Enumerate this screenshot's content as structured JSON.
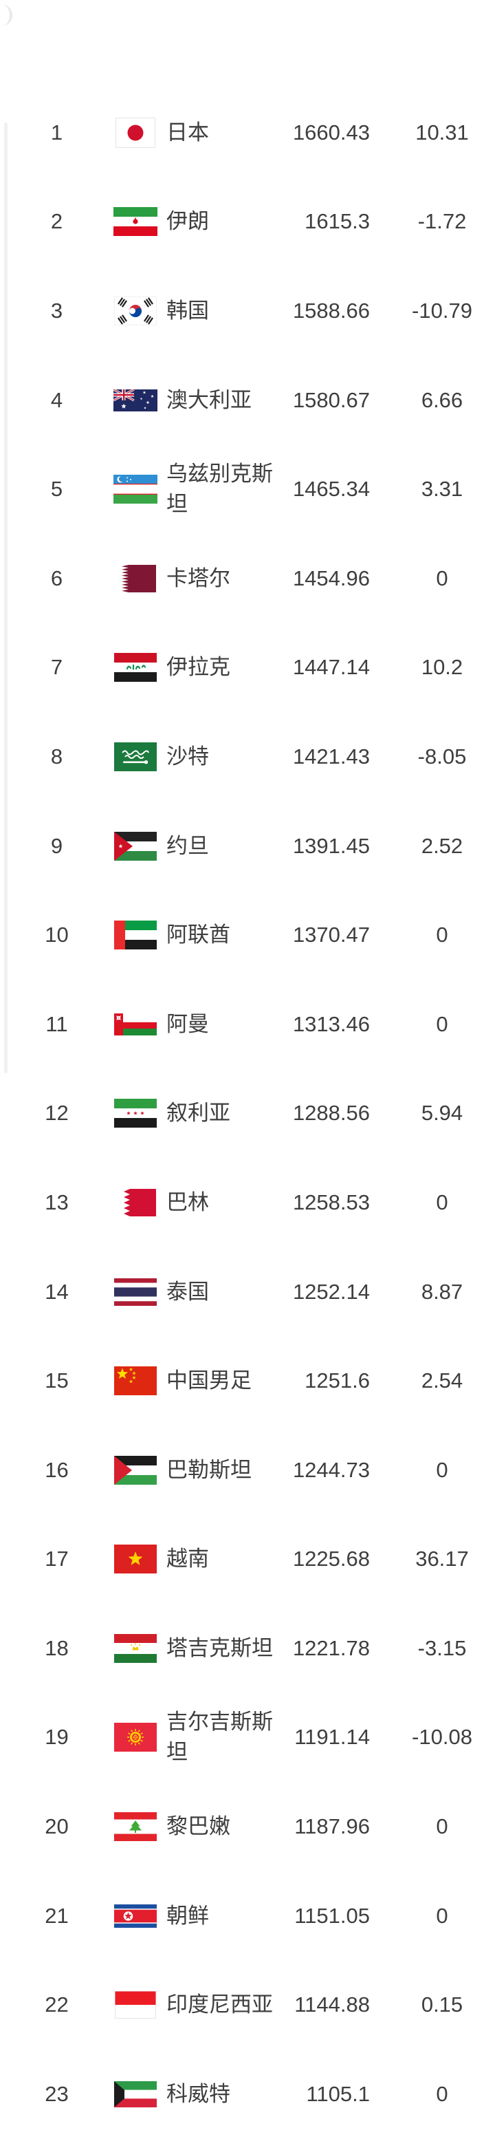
{
  "screen": {
    "background": "#ffffff",
    "text_color": "#3e3e3e"
  },
  "table": {
    "columns": [
      "rank",
      "flag",
      "team",
      "points",
      "change"
    ],
    "rows": [
      {
        "rank": "1",
        "flag": "japan",
        "team": "日本",
        "points": "1660.43",
        "change": "10.31"
      },
      {
        "rank": "2",
        "flag": "iran",
        "team": "伊朗",
        "points": "1615.3",
        "change": "-1.72"
      },
      {
        "rank": "3",
        "flag": "south-korea",
        "team": "韩国",
        "points": "1588.66",
        "change": "-10.79"
      },
      {
        "rank": "4",
        "flag": "australia",
        "team": "澳大利亚",
        "points": "1580.67",
        "change": "6.66"
      },
      {
        "rank": "5",
        "flag": "uzbekistan",
        "team": "乌兹别克斯坦",
        "points": "1465.34",
        "change": "3.31"
      },
      {
        "rank": "6",
        "flag": "qatar",
        "team": "卡塔尔",
        "points": "1454.96",
        "change": "0"
      },
      {
        "rank": "7",
        "flag": "iraq",
        "team": "伊拉克",
        "points": "1447.14",
        "change": "10.2"
      },
      {
        "rank": "8",
        "flag": "saudi-arabia",
        "team": "沙特",
        "points": "1421.43",
        "change": "-8.05"
      },
      {
        "rank": "9",
        "flag": "jordan",
        "team": "约旦",
        "points": "1391.45",
        "change": "2.52"
      },
      {
        "rank": "10",
        "flag": "uae",
        "team": "阿联酋",
        "points": "1370.47",
        "change": "0"
      },
      {
        "rank": "11",
        "flag": "oman",
        "team": "阿曼",
        "points": "1313.46",
        "change": "0"
      },
      {
        "rank": "12",
        "flag": "syria",
        "team": "叙利亚",
        "points": "1288.56",
        "change": "5.94"
      },
      {
        "rank": "13",
        "flag": "bahrain",
        "team": "巴林",
        "points": "1258.53",
        "change": "0"
      },
      {
        "rank": "14",
        "flag": "thailand",
        "team": "泰国",
        "points": "1252.14",
        "change": "8.87"
      },
      {
        "rank": "15",
        "flag": "china",
        "team": "中国男足",
        "points": "1251.6",
        "change": "2.54"
      },
      {
        "rank": "16",
        "flag": "palestine",
        "team": "巴勒斯坦",
        "points": "1244.73",
        "change": "0"
      },
      {
        "rank": "17",
        "flag": "vietnam",
        "team": "越南",
        "points": "1225.68",
        "change": "36.17"
      },
      {
        "rank": "18",
        "flag": "tajikistan",
        "team": "塔吉克斯坦",
        "points": "1221.78",
        "change": "-3.15"
      },
      {
        "rank": "19",
        "flag": "kyrgyzstan",
        "team": "吉尔吉斯斯坦",
        "points": "1191.14",
        "change": "-10.08"
      },
      {
        "rank": "20",
        "flag": "lebanon",
        "team": "黎巴嫩",
        "points": "1187.96",
        "change": "0"
      },
      {
        "rank": "21",
        "flag": "north-korea",
        "team": "朝鲜",
        "points": "1151.05",
        "change": "0"
      },
      {
        "rank": "22",
        "flag": "indonesia",
        "team": "印度尼西亚",
        "points": "1144.88",
        "change": "0.15"
      },
      {
        "rank": "23",
        "flag": "kuwait",
        "team": "科威特",
        "points": "1105.1",
        "change": "0"
      }
    ]
  }
}
